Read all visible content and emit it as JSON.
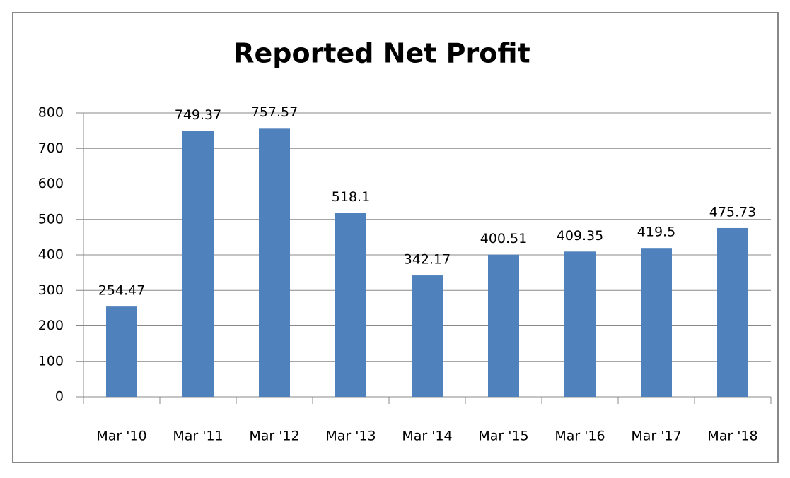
{
  "chart_data": {
    "type": "bar",
    "title": "Reported Net Profit",
    "categories": [
      "Mar '10",
      "Mar '11",
      "Mar '12",
      "Mar '13",
      "Mar '14",
      "Mar '15",
      "Mar '16",
      "Mar '17",
      "Mar '18"
    ],
    "values": [
      254.47,
      749.37,
      757.57,
      518.1,
      342.17,
      400.51,
      409.35,
      419.5,
      475.73
    ],
    "color": "#4f81bd",
    "ylim": [
      0,
      800
    ],
    "yticks": [
      0,
      100,
      200,
      300,
      400,
      500,
      600,
      700,
      800
    ],
    "grid": true
  }
}
